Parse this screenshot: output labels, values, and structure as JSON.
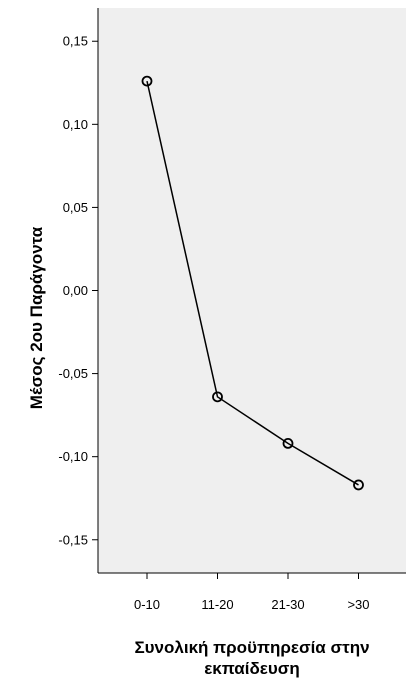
{
  "chart_data": {
    "type": "line",
    "categories": [
      "0-10",
      "11-20",
      "21-30",
      ">30"
    ],
    "values": [
      0.126,
      -0.064,
      -0.092,
      -0.117
    ],
    "xlabel_lines": [
      "Συνολική προϋπηρεσία στην",
      "εκπαίδευση"
    ],
    "ylabel": "Μέσος 2ου Παράγοντα",
    "ylim": [
      -0.17,
      0.17
    ],
    "yticks": [
      0.15,
      0.1,
      0.05,
      0.0,
      -0.05,
      -0.1,
      -0.15
    ],
    "ytick_labels": [
      "0,15",
      "0,10",
      "0,05",
      "0,00",
      "-0,05",
      "-0,10",
      "-0,15"
    ],
    "grid": false,
    "colors": {
      "plot_background": "#efefef",
      "line": "#000000",
      "marker": "#000000"
    },
    "marker": "hollow-circle"
  }
}
